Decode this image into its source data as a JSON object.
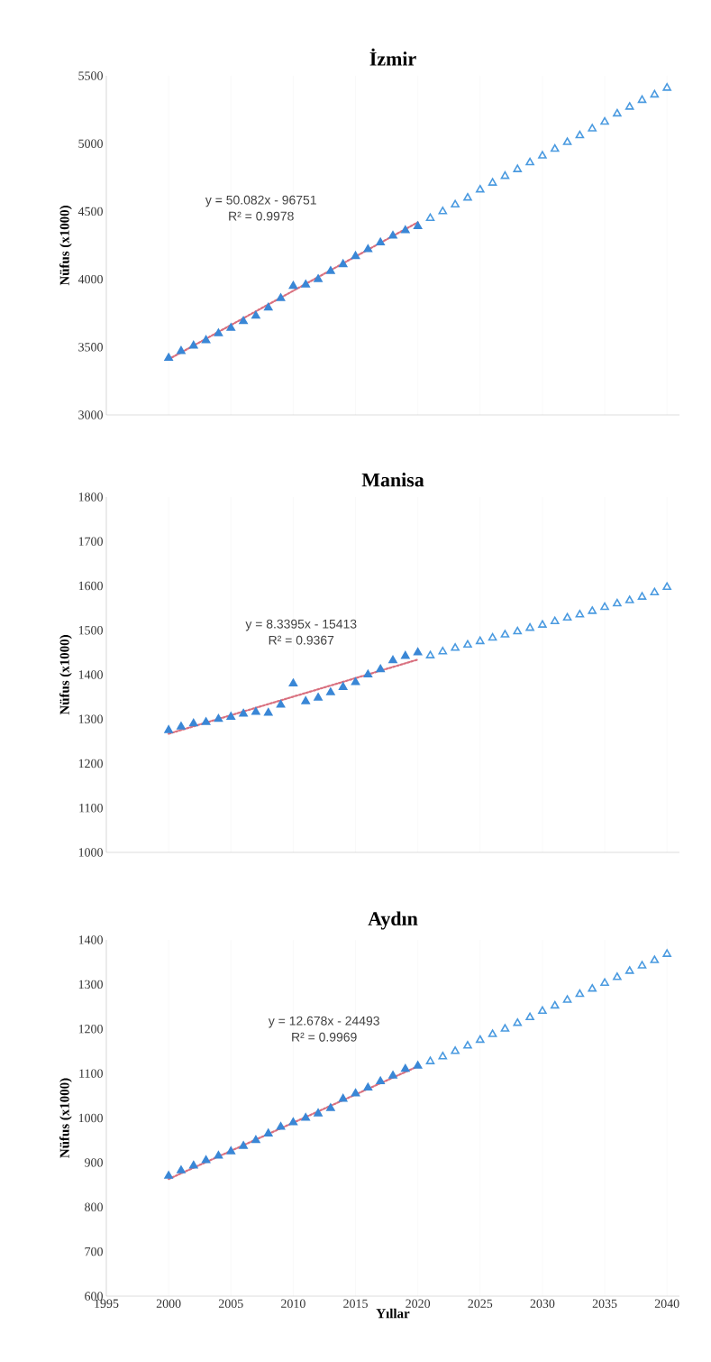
{
  "chart_data": [
    {
      "type": "scatter",
      "title": "İzmir",
      "ylabel": "Nüfus (x1000)",
      "xlim": [
        1995,
        2041
      ],
      "ylim": [
        3000,
        5500
      ],
      "xticks": [
        1995,
        2000,
        2005,
        2010,
        2015,
        2020,
        2025,
        2030,
        2035,
        2040
      ],
      "yticks": [
        3000,
        3500,
        4000,
        4500,
        5000,
        5500
      ],
      "tick_labels": "y",
      "grid": "x",
      "annotations": [
        "y = 50.082x - 96751",
        "R² = 0.9978"
      ],
      "series": [
        {
          "color": "#3a87d6",
          "marker": "triangle",
          "x": [
            2000,
            2001,
            2002,
            2003,
            2004,
            2005,
            2006,
            2007,
            2008,
            2009,
            2010,
            2011,
            2012,
            2013,
            2014,
            2015,
            2016,
            2017,
            2018,
            2019,
            2020
          ],
          "values": [
            3420,
            3470,
            3510,
            3550,
            3600,
            3640,
            3690,
            3730,
            3790,
            3860,
            3950,
            3960,
            4000,
            4060,
            4110,
            4170,
            4220,
            4270,
            4320,
            4360,
            4390
          ]
        },
        {
          "color": "#4a9ae0",
          "marker": "triangle",
          "x": [
            2021,
            2022,
            2023,
            2024,
            2025,
            2026,
            2027,
            2028,
            2029,
            2030,
            2031,
            2032,
            2033,
            2034,
            2035,
            2036,
            2037,
            2038,
            2039,
            2040
          ],
          "values": [
            4450,
            4500,
            4550,
            4600,
            4660,
            4710,
            4760,
            4810,
            4860,
            4910,
            4960,
            5010,
            5060,
            5110,
            5160,
            5220,
            5270,
            5320,
            5360,
            5410
          ]
        },
        {
          "type": "line",
          "color": "#d9707f",
          "line_style": "dotted",
          "x": [
            2000,
            2020
          ],
          "values": [
            3410,
            4420
          ]
        }
      ]
    },
    {
      "type": "scatter",
      "title": "Manisa",
      "ylabel": "Nüfus (x1000)",
      "xlim": [
        1995,
        2041
      ],
      "ylim": [
        1000,
        1800
      ],
      "xticks": [
        1995,
        2000,
        2005,
        2010,
        2015,
        2020,
        2025,
        2030,
        2035,
        2040
      ],
      "yticks": [
        1000,
        1100,
        1200,
        1300,
        1400,
        1500,
        1600,
        1700,
        1800
      ],
      "tick_labels": "y",
      "grid": "x",
      "annotations": [
        "y = 8.3395x - 15413",
        "R² = 0.9367"
      ],
      "series": [
        {
          "color": "#3a87d6",
          "marker": "triangle",
          "x": [
            2000,
            2001,
            2002,
            2003,
            2004,
            2005,
            2006,
            2007,
            2008,
            2009,
            2010,
            2011,
            2012,
            2013,
            2014,
            2015,
            2016,
            2017,
            2018,
            2019,
            2020
          ],
          "values": [
            1275,
            1283,
            1290,
            1293,
            1300,
            1305,
            1312,
            1316,
            1314,
            1332,
            1380,
            1340,
            1348,
            1360,
            1372,
            1383,
            1400,
            1412,
            1432,
            1442,
            1450
          ]
        },
        {
          "color": "#4a9ae0",
          "marker": "triangle",
          "x": [
            2021,
            2022,
            2023,
            2024,
            2025,
            2026,
            2027,
            2028,
            2029,
            2030,
            2031,
            2032,
            2033,
            2034,
            2035,
            2036,
            2037,
            2038,
            2039,
            2040
          ],
          "values": [
            1443,
            1452,
            1460,
            1467,
            1475,
            1483,
            1490,
            1497,
            1505,
            1512,
            1520,
            1528,
            1535,
            1543,
            1552,
            1560,
            1567,
            1575,
            1585,
            1597
          ]
        },
        {
          "type": "line",
          "color": "#d9707f",
          "line_style": "dotted",
          "x": [
            2000,
            2020
          ],
          "values": [
            1267,
            1434
          ]
        }
      ]
    },
    {
      "type": "scatter",
      "title": "Aydın",
      "ylabel": "Nüfus (x1000)",
      "xlabel": "Yıllar",
      "xlim": [
        1995,
        2041
      ],
      "ylim": [
        600,
        1400
      ],
      "xticks": [
        1995,
        2000,
        2005,
        2010,
        2015,
        2020,
        2025,
        2030,
        2035,
        2040
      ],
      "yticks": [
        600,
        700,
        800,
        900,
        1000,
        1100,
        1200,
        1300,
        1400
      ],
      "grid": "x",
      "annotations": [
        "y = 12.678x - 24493",
        "R² = 0.9969"
      ],
      "series": [
        {
          "color": "#3a87d6",
          "marker": "triangle",
          "x": [
            2000,
            2001,
            2002,
            2003,
            2004,
            2005,
            2006,
            2007,
            2008,
            2009,
            2010,
            2011,
            2012,
            2013,
            2014,
            2015,
            2016,
            2017,
            2018,
            2019,
            2020
          ],
          "values": [
            870,
            882,
            893,
            905,
            915,
            925,
            937,
            950,
            965,
            980,
            990,
            1000,
            1010,
            1022,
            1043,
            1055,
            1068,
            1082,
            1095,
            1110,
            1117
          ]
        },
        {
          "color": "#4a9ae0",
          "marker": "triangle",
          "x": [
            2021,
            2022,
            2023,
            2024,
            2025,
            2026,
            2027,
            2028,
            2029,
            2030,
            2031,
            2032,
            2033,
            2034,
            2035,
            2036,
            2037,
            2038,
            2039,
            2040
          ],
          "values": [
            1127,
            1138,
            1150,
            1162,
            1175,
            1188,
            1200,
            1213,
            1226,
            1240,
            1252,
            1265,
            1278,
            1290,
            1303,
            1316,
            1330,
            1342,
            1354,
            1368
          ]
        },
        {
          "type": "line",
          "color": "#d9707f",
          "line_style": "dotted",
          "x": [
            2000,
            2020
          ],
          "values": [
            863,
            1116
          ]
        }
      ]
    }
  ]
}
